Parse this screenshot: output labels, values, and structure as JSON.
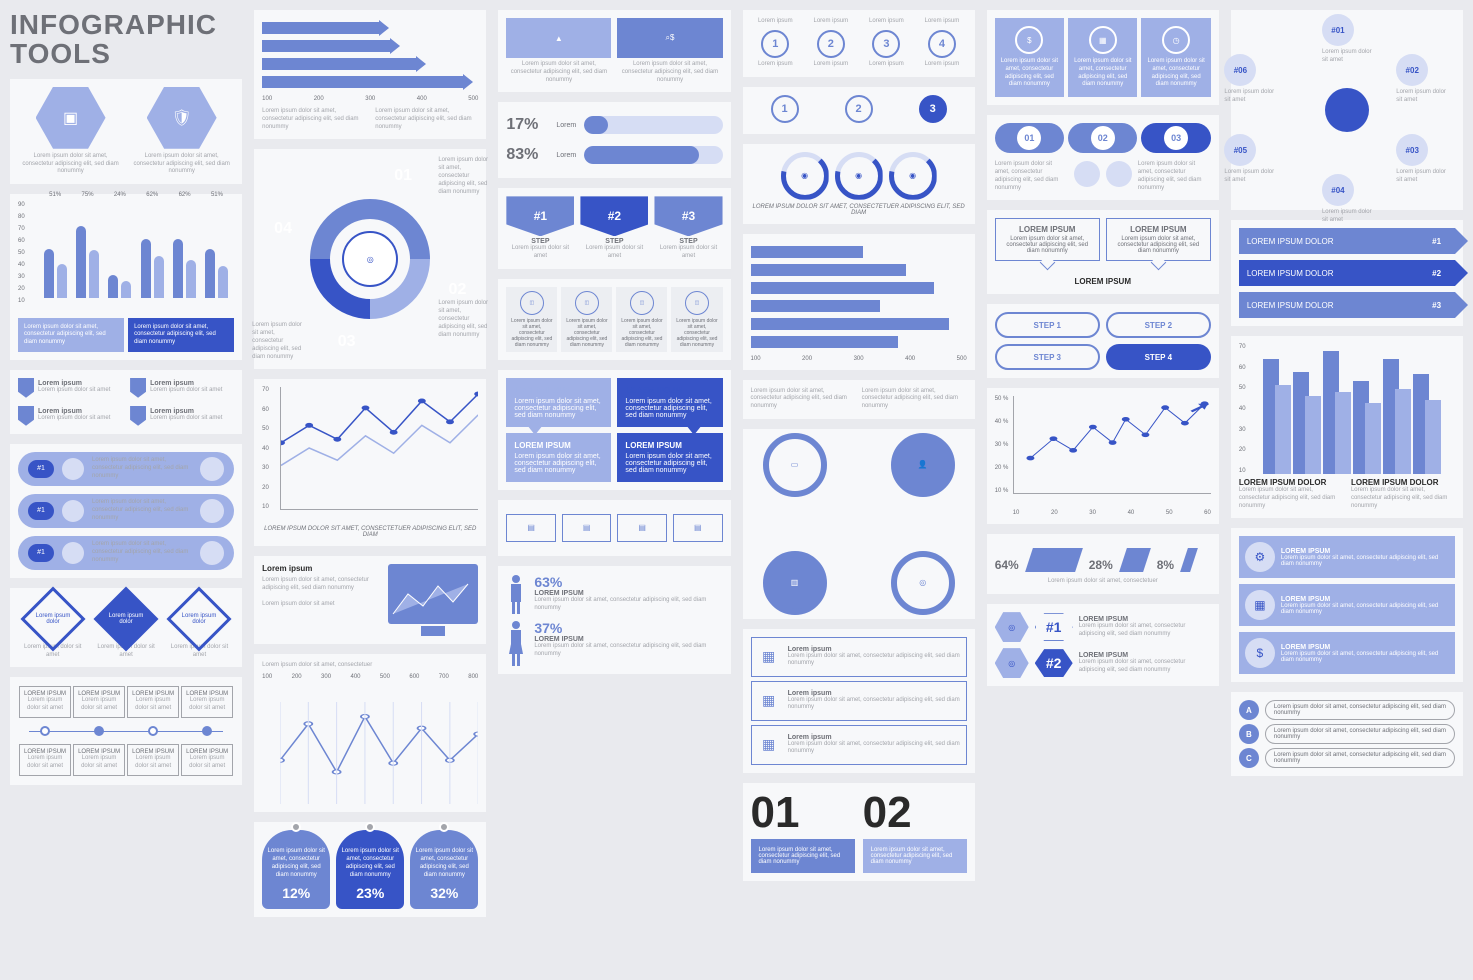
{
  "colors": {
    "bg": "#e9eaee",
    "panel": "#f7f8fa",
    "blue1": "#6d86d2",
    "blue2": "#3754c6",
    "blue3": "#9fb0e6",
    "bluePale": "#d6ddf4",
    "grey": "#6e7077",
    "grey2": "#a3a5ab",
    "dark": "#2a2a2a",
    "white": "#ffffff"
  },
  "lorem_tiny": "Lorem ipsum dolor sit amet, consectetur adipiscing elit, sed diam nonummy",
  "lorem_short": "Lorem ipsum dolor sit amet",
  "lorem_ipsum": "Lorem ipsum",
  "title": {
    "l1": "INFOGRAPHIC",
    "l2": "TOOLS"
  },
  "col1": {
    "hex": [
      {
        "icon": "safe"
      },
      {
        "icon": "shield"
      }
    ],
    "barChart": {
      "yTicks": [
        90,
        80,
        70,
        60,
        50,
        40,
        30,
        20,
        10
      ],
      "groups": [
        {
          "a": 51,
          "b": 36,
          "label": "51%"
        },
        {
          "a": 75,
          "b": 50,
          "label": "75%"
        },
        {
          "a": 24,
          "b": 18,
          "label": "24%"
        },
        {
          "a": 62,
          "b": 44,
          "label": "62%"
        },
        {
          "a": 62,
          "b": 40,
          "label": "62%"
        },
        {
          "a": 51,
          "b": 34,
          "label": "51%"
        }
      ],
      "colors": {
        "a": "#6d86d2",
        "b": "#9fb0e6"
      }
    },
    "ribbons": [
      "Lorem ipsum",
      "Lorem ipsum",
      "Lorem ipsum",
      "Lorem ipsum"
    ],
    "pills": [
      {
        "n": "#1"
      },
      {
        "n": "#1"
      },
      {
        "n": "#1"
      }
    ],
    "diamonds": [
      {
        "fill": false
      },
      {
        "fill": true
      },
      {
        "fill": false
      }
    ],
    "timeline": {
      "count": 4,
      "label": "LOREM IPSUM"
    }
  },
  "col2": {
    "arrows": {
      "widths": [
        55,
        60,
        72,
        94
      ],
      "ticks": [
        100,
        200,
        300,
        400,
        500
      ],
      "color": "#6d86d2"
    },
    "cycle": {
      "numbers": [
        "01",
        "02",
        "03",
        "04"
      ]
    },
    "lineChart": {
      "yTicks": [
        70,
        60,
        50,
        40,
        30,
        20,
        10
      ],
      "series1": [
        38,
        48,
        40,
        58,
        44,
        62,
        50,
        66
      ],
      "series2": [
        25,
        35,
        28,
        42,
        32,
        48,
        38,
        54
      ],
      "colors": {
        "s1": "#3754c6",
        "s2": "#9fb0e6"
      }
    },
    "caption": "LOREM IPSUM DOLOR SIT AMET, CONSECTETUER ADIPISCING ELIT, SED DIAM",
    "monitor": {
      "title": "Lorem ipsum"
    },
    "wavy": {
      "xTicks": [
        100,
        200,
        300,
        400,
        500,
        600,
        700,
        800
      ],
      "caption": "Lorem ipsum dolor sit amet, consectetuer",
      "series": [
        30,
        55,
        22,
        60,
        28,
        52,
        30,
        48
      ]
    },
    "drops": [
      {
        "p": "12%"
      },
      {
        "p": "23%",
        "alt": true
      },
      {
        "p": "32%"
      }
    ]
  },
  "col3": {
    "feats": [
      {
        "icon": "mountain"
      },
      {
        "icon": "search-dollar",
        "alt": true
      }
    ],
    "pcts": [
      {
        "n": "17%",
        "l": "Lorem",
        "w": 17
      },
      {
        "n": "83%",
        "l": "Lorem",
        "w": 83
      }
    ],
    "steps": [
      {
        "n": "#1",
        "t": "STEP"
      },
      {
        "n": "#2",
        "t": "STEP",
        "alt": true
      },
      {
        "n": "#3",
        "t": "STEP"
      }
    ],
    "iconcards": [
      "chart",
      "layers",
      "document",
      "briefcase"
    ],
    "callouts": [
      {
        "t": "LOREM IPSUM",
        "cls": "a dn"
      },
      {
        "t": "LOREM IPSUM",
        "cls": "b dn"
      },
      {
        "t": "LOREM IPSUM",
        "cls": "a"
      },
      {
        "t": "LOREM IPSUM",
        "cls": "b"
      }
    ],
    "iconline": [
      "bars",
      "chart",
      "note",
      "case"
    ],
    "persons": [
      {
        "p": "63%",
        "t": "LOREM IPSUM",
        "male": true
      },
      {
        "p": "37%",
        "t": "LOREM IPSUM",
        "male": false
      }
    ]
  },
  "col4": {
    "top": {
      "labels": [
        "Lorem ipsum",
        "Lorem ipsum",
        "Lorem ipsum",
        "Lorem ipsum"
      ],
      "nums": [
        "1",
        "2",
        "3",
        "4"
      ]
    },
    "row2": {
      "nums": [
        "1",
        "2",
        "3"
      ],
      "fill": [
        false,
        false,
        true
      ]
    },
    "rings": [
      "tree",
      "bulb",
      "chat"
    ],
    "ringCaption": "LOREM IPSUM DOLOR SIT AMET, CONSECTETUER ADIPISCING ELIT, SED DIAM",
    "hbars": {
      "widths": [
        52,
        72,
        85,
        60,
        92,
        68
      ],
      "ticks": [
        100,
        200,
        300,
        400,
        500
      ],
      "color": "#6d86d2"
    },
    "quad": [
      "briefcase",
      "person",
      "chart",
      "target"
    ],
    "list": [
      "case",
      "book",
      "edit"
    ],
    "bignums": [
      {
        "n": "01"
      },
      {
        "n": "02"
      }
    ]
  },
  "col5": {
    "iconboxes": [
      "dollar",
      "calendar",
      "clock"
    ],
    "ovals": [
      {
        "n": "01"
      },
      {
        "n": "02"
      },
      {
        "n": "03",
        "fill": true
      }
    ],
    "ovalSides": [
      "tap",
      "hand"
    ],
    "bubbles": [
      {
        "t": "LOREM IPSUM"
      },
      {
        "t": "LOREM IPSUM"
      }
    ],
    "bubbleCenter": "LOREM IPSUM",
    "steps": [
      {
        "t": "STEP 1"
      },
      {
        "t": "STEP 2"
      },
      {
        "t": "STEP 3"
      },
      {
        "t": "STEP 4",
        "fill": true
      }
    ],
    "scatter": {
      "yTicks": [
        "50 %",
        "40 %",
        "30 %",
        "20 %",
        "10 %"
      ],
      "xTicks": [
        10,
        20,
        30,
        40,
        50,
        60
      ],
      "points": [
        [
          5,
          18
        ],
        [
          12,
          28
        ],
        [
          18,
          22
        ],
        [
          24,
          34
        ],
        [
          30,
          26
        ],
        [
          34,
          38
        ],
        [
          40,
          30
        ],
        [
          46,
          44
        ],
        [
          52,
          36
        ],
        [
          58,
          46
        ]
      ]
    },
    "stacked": [
      {
        "p": "64%",
        "w": 50
      },
      {
        "p": "28%",
        "w": 24
      },
      {
        "p": "8%",
        "w": 10
      }
    ],
    "stackedCaption": "Lorem ipsum dolor sit amet, consectetuer",
    "hexlist": [
      {
        "r": "#1",
        "line": true,
        "t": "LOREM IPSUM"
      },
      {
        "r": "#2",
        "line": false,
        "t": "LOREM IPSUM"
      }
    ]
  },
  "col6": {
    "flower": [
      "#01",
      "#02",
      "#03",
      "#04",
      "#05",
      "#06"
    ],
    "arrows": [
      {
        "t": "LOREM IPSUM DOLOR",
        "n": "#1"
      },
      {
        "t": "LOREM IPSUM DOLOR",
        "n": "#2",
        "alt": true
      },
      {
        "t": "LOREM IPSUM DOLOR",
        "n": "#3"
      }
    ],
    "vbars": {
      "yTicks": [
        70,
        60,
        50,
        40,
        30,
        20,
        10
      ],
      "pairs": [
        [
          62,
          48
        ],
        [
          55,
          42
        ],
        [
          66,
          44
        ],
        [
          50,
          38
        ],
        [
          62,
          46
        ],
        [
          54,
          40
        ]
      ],
      "colors": {
        "a": "#6d86d2",
        "b": "#9fb0e6"
      }
    },
    "noteTitle": "LOREM IPSUM DOLOR",
    "cards": [
      {
        "icon": "gear",
        "t": "LOREM IPSUM"
      },
      {
        "icon": "calendar",
        "t": "LOREM IPSUM"
      },
      {
        "icon": "money",
        "t": "LOREM IPSUM"
      }
    ],
    "abc": [
      "A",
      "B",
      "C"
    ]
  }
}
